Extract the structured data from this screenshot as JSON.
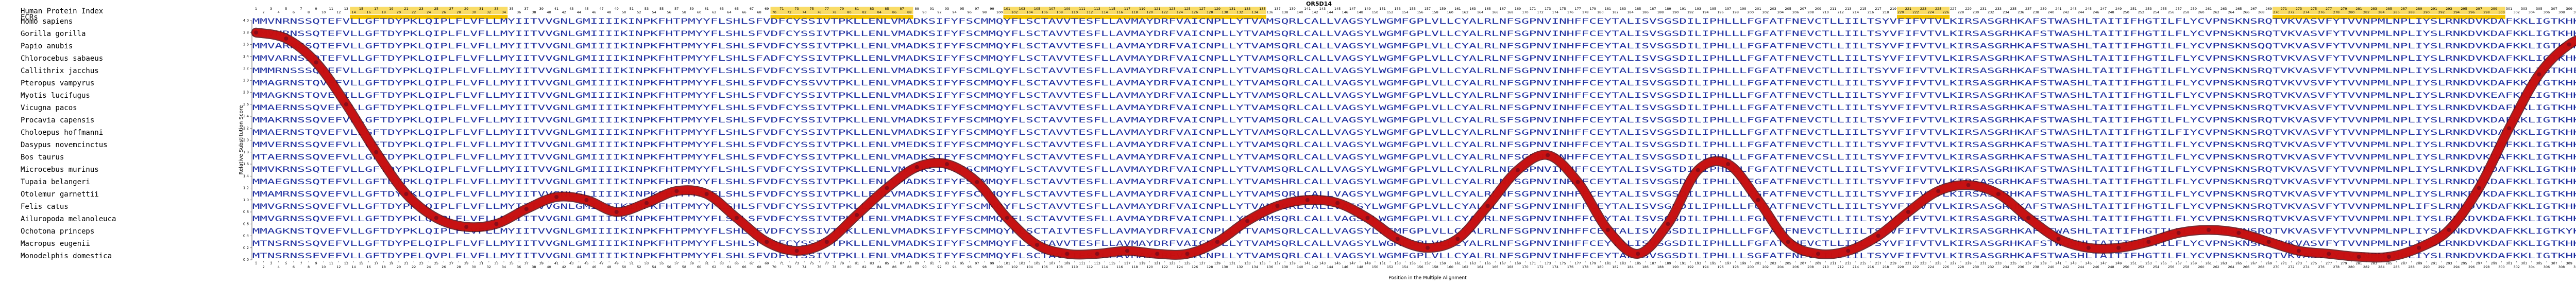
{
  "chart_data": {
    "type": "line",
    "title": "OR5D14",
    "index_label": "Human Protein Index",
    "ecr_label": "ECRs",
    "ylabel": "Relative Substitution Score",
    "xlabel": "Position in the Multiple Alignment",
    "xlim": [
      1,
      313
    ],
    "ylim": [
      0,
      4
    ],
    "yticks": [
      {
        "value": 0,
        "label": "0.0"
      },
      0.2,
      0.4,
      0.6,
      0.8,
      {
        "value": 1,
        "label": "1.0"
      },
      1.2,
      1.4,
      1.6,
      1.8,
      {
        "value": 2,
        "label": "2.0"
      },
      2.2,
      2.4,
      2.6,
      2.8,
      {
        "value": 3,
        "label": "3.0"
      },
      3.2,
      3.4,
      3.6,
      3.8,
      {
        "value": 4,
        "label": "4.0"
      }
    ],
    "xticks": [
      1,
      2,
      3,
      4,
      5,
      6,
      7,
      8,
      9,
      10,
      11,
      12,
      13,
      14,
      15,
      16,
      17,
      18,
      19,
      20,
      21,
      22,
      23,
      24,
      25,
      26,
      27,
      28,
      29,
      30,
      31,
      32,
      33,
      34,
      35,
      36,
      37,
      38,
      39,
      40,
      41,
      42,
      43,
      44,
      45,
      46,
      47,
      48,
      49,
      50,
      51,
      52,
      53,
      54,
      55,
      56,
      57,
      58,
      59,
      60,
      61,
      62,
      63,
      64,
      65,
      66,
      67,
      68,
      69,
      70,
      71,
      72,
      73,
      74,
      75,
      76,
      77,
      78,
      79,
      80,
      81,
      82,
      83,
      84,
      85,
      86,
      87,
      88,
      89,
      90,
      91,
      92,
      93,
      94,
      95,
      96,
      97,
      98,
      99,
      100,
      101,
      102,
      103,
      104,
      105,
      106,
      107,
      108,
      109,
      110,
      111,
      112,
      113,
      114,
      115,
      116,
      117,
      118,
      119,
      120,
      121,
      122,
      123,
      124,
      125,
      126,
      127,
      128,
      129,
      130,
      131,
      132,
      133,
      134,
      135,
      136,
      137,
      138,
      139,
      140,
      141,
      142,
      143,
      144,
      145,
      146,
      147,
      148,
      149,
      150,
      151,
      152,
      153,
      154,
      155,
      156,
      157,
      158,
      159,
      160,
      161,
      162,
      163,
      164,
      165,
      166,
      167,
      168,
      169,
      170,
      171,
      172,
      173,
      174,
      175,
      176,
      177,
      178,
      179,
      180,
      181,
      182,
      183,
      184,
      185,
      186,
      187,
      188,
      189,
      190,
      191,
      192,
      193,
      194,
      195,
      196,
      197,
      198,
      199,
      200,
      201,
      202,
      203,
      204,
      205,
      206,
      207,
      208,
      209,
      210,
      211,
      212,
      213,
      214,
      215,
      216,
      217,
      218,
      219,
      220,
      221,
      222,
      223,
      224,
      225,
      226,
      227,
      228,
      229,
      230,
      231,
      232,
      233,
      234,
      235,
      236,
      237,
      238,
      239,
      240,
      241,
      242,
      243,
      244,
      245,
      246,
      247,
      248,
      249,
      250,
      251,
      252,
      253,
      254,
      255,
      256,
      257,
      258,
      259,
      260,
      261,
      262,
      263,
      264,
      265,
      266,
      267,
      268,
      269,
      270,
      271,
      272,
      273,
      274,
      275,
      276,
      277,
      278,
      279,
      280,
      281,
      282,
      283,
      284,
      285,
      286,
      287,
      288,
      289,
      290,
      291,
      292,
      293,
      294,
      295,
      296,
      297,
      298,
      299,
      300,
      301,
      302,
      303,
      304,
      305,
      306,
      307,
      308,
      309,
      310,
      311,
      312,
      313
    ],
    "ecrs": [
      [
        14,
        34
      ],
      [
        70,
        88
      ],
      [
        101,
        135
      ],
      [
        220,
        226
      ],
      [
        270,
        300
      ]
    ],
    "ecr_color": "#f5c400",
    "sequences": [
      {
        "name": "Homo sapiens",
        "seq": "MMVNRNSSQTEFVLLGFTDYPKLQIPLFLVFLLMYIITVVGNLGMIIIIKINPKFHTPMYYFLSHLSFVDFCYSSIVTPKLLENLVMADKSIFYFSCMMQYFLSCTAVVTESFLLAVMAYDRFVAICNPLLYTVAMSQRLCALLVAGSYLWGMFGPLVLLCYALRLNFSGPNVINHFFCEYTALISVSGSDILIPHLLLFGFATFNEVCTLLIILTSYVFIFVTVLKIRSASGRHKAFSTWASHLTAITIFHGTILFLYCVPNSKNSRQTVKVASVFYTVVNPMLNPLIYSLRNKDVKDAFKKLIGTKHKLTC"
      },
      {
        "name": "Gorilla gorilla",
        "seq": "MMVNRNSSQTEFVLLGFTDYPKLQIPLFLVFLLMYIITVVGNLGMIIIIKINPKFHTPMYYFLSHLSFVDFCYSSIVTPKLLENLVMADKSIFYFSCMMQYFLSCTAVVTESFLLAVMAYDRFVAICNPLLYTVAMSQRLCALLVAGSYLWGMFGPLVLLCYALRLNFSGPNVINHFFCEYTALISVSGSDILIPHLLLFGFATFNEVCTLLIILTSYVFIFVTVLKIRSASGRHKAFSTWASHLTAITIFHGTILFLYCVPNSKNSRQTVKVASVFYTVVNPMLNPLIYSLRNKDVKDAFKKLIGTKHKLTC"
      },
      {
        "name": "Papio anubis",
        "seq": "MMVARNSSQTEFVLLGFTDYPKLQIPLFLVFLLMYIITVVGNLGMIIIIKINPKFHTPMYYFLSHLSFVDFCYSSIVTPKLLENLVMADKSIFYFSCMMQYFLSCTAVVTESFLLAVMAYDRFVAICNPLLYTVAMSQRLCALLVAGSYLWGMFGPLVLLCYALRLNFSGPNVINHFFCEYTALISVSGSDILIPHLLLFGFATFNEVCTLLIILTSYVFIFVTVLKIRSASGRHKAFSTWASHLTAITIFHGTILFLYCVPNSKNSQQTVKVASVFYTVVNPMLNPLIYSLRNKDVKDAFKKLIGTKHKLTC"
      },
      {
        "name": "Chlorocebus sabaeus",
        "seq": "MMVARNSSQTEFVLLGFTDYPKLQIPLFLVFLLMYIITVVGNLGMIIIIKINPKFHTPMYYFLSHLSFADFCYSSIVTPKLLENLVMADKSIFYFSCMMQYFLSCTAVVTESFLLAVMAYDRFVAICNPLLYTVAMSQRLCALLVAGSYLWGMFGPLVLLCYALRLNFSGPNVINHFFCEYTALISVSGSDILIPHLLLFGFATFNEVCTLLIILTSYVFIFVTVLKIRSASGRHKAFSTWASHLTAITIFHGTILFLYCVPNSKNSRQTVKVASVFYTVVNPMLNPLIYSLRNKDVKDAFKKLIGTKHKLTC"
      },
      {
        "name": "Callithrix jacchus",
        "seq": "MMMRNSSSQTEFVLLGFTDYPKLQIPLFLVFLLMYIITVVGNLGMIIIIKINPKFHTPMYYFLSHLSFVDFCYSSIVTPKLLENLVMADKSIFYFSCMLQYFLSCTAVVTESFLLAVMAYDRFVAICNPLLYTVAMSQRLCALLVAGSYLWGMFGPLVLLCYALRLNFSGPNVINHFFCEYTALISVSGSDILIPHLLLFGFATFNEVCTLLIILTSYVFIFVTVLKIRSASGRHKAFSTWASHLTAITIFHGTILFLYCVPNSKNSRQTVKVASVFYTVVNPMLNPLIYSLRNKDVKDAFKKLIGTKHELTC"
      },
      {
        "name": "Pteropus vampyrus",
        "seq": "MMAGRNSTQVEFVLLGFTDYPKLQIPLFLVFLLMYIITVVGNLGMIIIIKINPKFHTPMYYFLSHLSFVDFCYSSVVTPKLLENLVMADKSIFYFSCMMQYFLSCTAVVTESFLLAVMAYDRFVAICNPLLYTVAMSQRLCALLVAGSYLWGMFGPLVLLCYALRLNFSGPNVINHFFCEYTALISVSGSDILIPHLLLFGFATFNEVCTLLIILTSYVFIFVTVLKIRSASGRHKAFSTWASHLTAITIFHGTILFLYCVPNSKNSRQTVKVVSVFYTVVNPMLNPLIYSLRNKDVKDAFKKLIGTKHKLTC"
      },
      {
        "name": "Myotis lucifugus",
        "seq": "MMAGKNSTQVEFILLGFTDYPKLQIPLFLVFLLMYIITVVGNLGMIIIIKINPKFHTPMYYFLSHLSFVDFCYSSIVTPKLLENLVMADKSIFYFSCMMQYFLSCTAVVTESFLLAVMAYDRFVAICNPLLYTVAMSQRLCALLVAGSYLWGMFGPLVLLCYALRLNFSGPNVINHFFCEYTALISVSGSDILIPHLLLFGFATFNEVCTLLIILTSYVFIFVTVLKIRSASGRHKAFSTWASHLTAITIFHGTILFLYCVPNSKNSRQTVKVASVFYTVVNPMLNPLIYSLRNKDVKEAFKKLIGTKHKLTC"
      },
      {
        "name": "Vicugna pacos",
        "seq": "MMAERNSSQVEFVLLGFTDYPKLQIPLFLVFLLMYIITVVGNLGMIIIIKINPKFHTPMYYFLSHLSFVDFCYSSIVTPKLLENLVMADKSIFYFSCMMQYFLSCTAVVTESFLLAVMAYDRFVAICNPLLYTVAMSQRLCALLVAGSYLWGMFGPLVLLCYALRLNFSGPNVINHFFCEYTALISVSGSDILIPHLLLFGFATFNEVCTLLIILTSYVFIFVTVLRIRSASGRHKAFSTWASHLTAITIFHGTILFLYCVPNSKNSRQTVKVASVFYTVVNPMLNPLIYSLRNKDVKDAFKKLIGTKHKLTC"
      },
      {
        "name": "Procavia capensis",
        "seq": "MMAKRNSSQVEFVLLGFTDYPKLQIPLFLVFLLMYIITVVGNLGMIIIIKINPKFHTPMYYFLSHLSFVDFCYSSIVTPKLLENLVMADKSIFYFSCMMQYFLSCTAVVTESFLLAVMAYDRFVAICNPLLYTVAMSQRLCALLVAGSYLWGMFGPLVLLCYALRLSFSGPNVINHFFCEYTALISVSGSDILIPHLLLFGFATFNEVCTLLIILTSYVFIFVTVLKIRSASGRHKAFSTWASHLTAITIFHGTILFLYCVPNSKNSRQTVKVASVFYTVVNPMLNPLIYSLRNKDVKDAFKKLIGTKHKLTC"
      },
      {
        "name": "Choloepus hoffmanni",
        "seq": "MMAERNSTQVEFVLLGFTDYPKLQIPLFLVFLLMYIITVVGNLGMIIIIKINPKFHTPMYYFLSHLSFVDFCYSSIVTPKLLENLVMADKSIFYFSCMMQYFLSCTAVVTESFLLAVMAYDRFVAICNPLLYTVAMSQRLCALLVAGSYLWGMFGPLVLLCYALRLNFSGPNVINHFFCEYTALISVSGSDILIPHLLLFGFATFNEVCTLLIILTSYVFIFVTVLKIRSASGRHKAFSTWASHLTAITIFHGTILFIYCVPNSKNSRQTVKVASVFYTVVNPMLNPLIYSLRNKDVKDAFKKLIGTKHKLTC"
      },
      {
        "name": "Dasypus novemcinctus",
        "seq": "MMVERNSSQVEFVLLGFTDYPKLQIPLFLVFLLMYIITVVGNLGMIIIIKINPKFHTPMYYFLSHLSFVDFCYSSIVTPKLLENLVMEDKSIFYFSCMMQYFLSCTAVVTESFLLAVMAYDRFVAICNPLLYTVAMSQRLCALLVAGSYLWGMFGPLVLLCYALRLNFSGPNVINHFFCEYTALISVSGSDILIPHLLLFGFATFNEVCTLLIILTSYVFIFVTVLKIRSASGRHKAFSTWASHLTAITIFHGTILFLYCVPNSKNSRQTVKVASVFYTVVNPMLNPLIYSLRNKDVKDAFKKLIGTKHKLTC"
      },
      {
        "name": "Bos taurus",
        "seq": "MTAERNSSQVEFVLLGFTDYPKLQIPLFLVFLLMYIITVVGNLGMIIIIKINPKFHTPMYYFLSHLSFVDFCYSSIVTPKLLENLVMADKSIFYFSCMMQYFLSCTAVVTESFLLAVMAYDRFVAICNPLLYTVAMSQRLCALLVAGSYLWGMFGPLVLLCYALRLNFSGPNVINHFFCEYTALISVSGSDILIPHLLLFGFATFNEVCSLLIILTSYVFIFVTVLKIRSASGRHKAFSTWASHLTAITIFHGTILFLYCVPNSKNSRQTVKVASVFYTVVNPMLNPLIYSLRNKDVKDAFKKLIGTKHKLTC"
      },
      {
        "name": "Microcebus murinus",
        "seq": "MMVKRNSSQTEFVLLGFTDYPKLQIPLFLVFLLMYIITVVGNLGMIIIIKINPKFHTPMYYFLSHLSFVDFCYSSIVTPKLLENLVMADKSIFYFSCMMQYFLSCTAVVTESFLLAVMAYDRFVAICNPLLYTVAMSQRLCALLVAGSYLWGMFGPLVLLCYALRLNFSGPNVINHFFCEYTALISVSGTDILIPHLLLFGFATFNEVCTLLIILTSYVFIFVTVLKIRSASGRHKAFSTWASHLTAITIFHGTILFLYCVPNSKNSRQTVKVASVFYTVVNPMLNPLIYSLRNKDVKDAFKKLIGTKHKLTC"
      },
      {
        "name": "Tupaia belangeri",
        "seq": "MMAEGNSSQTEFVLLGFTDYPKLQIPLFLVFLLMYIITVVGNLGMIIIIKINPKFHTPMYYFLSHLSFVDFCYSSIVTPKLLENLVMADKSIFYFSCMMQYFLSCTAVVTESFLLAVMAYDRFVAICNPLLYTVAMSHRLCALLVAGSYLWGMFGPLVLLCYALRLNFSGPNVINHFFCEYTALISVSGSDILIPHLLLFGFATFNEVCTLLIILTSYVFIFVTVLKIRSASGRHKAFSTWASHLTAITIFHGTILFLYCVPNSKNSRQTVKVASVFYTVVNPMLNPLIYSLRNKDVKDAFKKLIGTKHKLTC"
      },
      {
        "name": "Otolemur garnettii",
        "seq": "MMAMRNSSQVEFVLLGFTDYPKLQIPLFLVFLLMYIITVVGNLGLIIIIKINPKFHTPMYYFLSHLSFVDFCYSSIVTPKLLENLVMADKSIFYFSCMMQYFLSCTAVVTESFLLAVMAYDRFVAICNPLLYTVAMSQRLCALLVAGSYLWGMFGPLVLLCYALRLNFSGPNVINHFFCEYTALISVSGSDILIPHLLLFGFATFNEVCTLLIILTSYVFIFVTVLKIRSASGRHKAFSTWASHLTAITIFHGTILFLYCVPNSKNSRQTVKVASVFYTVVNPMLNPLIYSLRNKDVKDAFKKLIGTKHKLTC"
      },
      {
        "name": "Felis catus",
        "seq": "MMVGRNSSQVEFVLLGFTDYPKLQIPLFLVFLLMYIITVVGNLGMIIIIKINPKFHTPMYYFLSHLSFVDFCYSSIVTPKLLENLVMADKSIFYFSCMMQYFLSCTAVVTESFLLAVMAYDRFVAICNPLLYTVAMSQRLCALLVAGSYLWGMFGPLVLLCYALRLNFSGPNVINHFFCEYTALISVSGSDILIPHLLLFGFATFNEVCTLLIILTSYVFIFVTVLKIRSASGRHKAFSTWASHLTAITIFHGTILFLYCVPNSKNSRQTVKVASVFYTVVNPMLNPLIFSLRNKDVKDAFKKLIGTKHKLTC"
      },
      {
        "name": "Ailuropoda melanoleuca",
        "seq": "MMVGRNSSQVEFVLLGFTDYPKLQIPLFLVFLLMYIITVVGNLGMIIIIKINPKFHTPMYYFLSHLSFVDFCYSSIVTPKLLENLVMADKSIFYFSCMMQYFLSCTAVVTESFLLAVMAYDRFVAICNPLLYTVAMSQRLCALLVAGSYLWGMFGPLVLLCYALRLNFSGPNVINHFFCEYTALISVSGSDILIPHLLLFGFATFNEVCTLLIILTSYVFIFVTVLKIRSASGRRKAFSTWASHLTAITIFHGTILFLYCVPNSKNSRQTVKVASVFYTVVNPMLNPLIYSLRNKDVKDAFKKLIGTKHKLTC"
      },
      {
        "name": "Ochotona princeps",
        "seq": "MMAGKNSTQVEFVLLGFTDYPKLQIPLFLVFLLMYIITVVGNLGMIIIIKINPKFHTPMYYFLSHLSFVDFCYSSIVTPKLLENLVMADKSIFYFSCMMQYFLSCTAIVTESFLLAVMAYDRFVAICNPLLYTVAMSQRLCALLVAGSYLWGMFGPLVLLCYALRLNFSGPNVINHFFCEYTALISVSGSDILIPHLLLFGFATFNEVCTLLIILTSYVFIFVTVLKIRSASGRHKAFSTWASHLTAITIFHGTILFLYCVPNSKNSRQTVKVASVFYTVVNPMLNPLIYSLRNKDVKDAFKKLIGTKYKLTC"
      },
      {
        "name": "Macropus eugenii",
        "seq": "MTNSRNSSQVEFVLLGFTDYPELQIPLFLVFLLMYIITVVGNLGMIIIIKINPKFHTPMYYFLSHLSFVDFCYSSIVTPKLLENLVMADKSIFYFSCMMQYFLSCTAVVTESFLLAVMAYDRFVAICNPLLYTVAMSQRLCALLVAGSYLWGMFGPLVLLCYALRLNFSGPNVINHFFCEYTALISVSGSDILIPHLLLFGFATFNEVCTLLIILTSYVFIFVTVLKIRSASGRHKAFSTWGSHLTAITIFHGTILFLYCVPNSKNSRQTVKVASVFYTVVNPMLNPLIYSLRNKDVKDAFKKLIGTKHKLTS"
      },
      {
        "name": "Monodelphis domestica",
        "seq": "MTNSRNSSEVEFVLLGFTDYPELQVPLFLVFLLMYIITVVGNLGMIIIIKINPKFHTPMYYFLSHLSFVDFCYSSIVTPKLLENLVMADKSIFYFSCMMQYFLSCTAVVTESFLLAVMAYDRFVAICNPLLYTVAMSQRLCALLVAGSYLWGMFGPLVLLCYALRLNFSGPNVINHFFCEYTALISVSGSDILIPHLLLSGFATFNEVCTLLIILTSYVFIFVTVLKIRSASGRHKAFSTWASHLTAITIFHGTILFLYCVPNSKNSRQTVKVASVFYTVVNPMLNPLIYSLRNKDVKDAFKKLIGTKHKLTS"
      }
    ],
    "seq_color": "#1f2fa0",
    "series": [
      {
        "name": "Relative Substitution Score",
        "color": "#d01010",
        "x": [
          1,
          5,
          9,
          13,
          17,
          21,
          25,
          29,
          33,
          37,
          41,
          45,
          49,
          53,
          57,
          61,
          65,
          69,
          73,
          77,
          81,
          85,
          89,
          93,
          97,
          101,
          105,
          109,
          113,
          117,
          121,
          125,
          129,
          133,
          137,
          141,
          145,
          149,
          153,
          157,
          161,
          165,
          169,
          173,
          177,
          181,
          185,
          189,
          193,
          197,
          201,
          205,
          209,
          213,
          217,
          221,
          225,
          229,
          233,
          237,
          241,
          245,
          249,
          253,
          257,
          261,
          265,
          269,
          273,
          277,
          281,
          285,
          289,
          293,
          297,
          301,
          305,
          309,
          313
        ],
        "values": [
          3.8,
          3.7,
          3.3,
          2.6,
          1.8,
          1.1,
          0.7,
          0.55,
          0.6,
          0.85,
          1.05,
          1.0,
          0.8,
          0.95,
          1.15,
          1.1,
          0.7,
          0.3,
          0.15,
          0.3,
          0.75,
          1.2,
          1.55,
          1.6,
          1.3,
          0.7,
          0.25,
          0.1,
          0.1,
          0.15,
          0.1,
          0.1,
          0.3,
          0.65,
          0.9,
          1.0,
          0.95,
          0.7,
          0.35,
          0.2,
          0.35,
          0.9,
          1.5,
          1.75,
          1.3,
          0.5,
          0.1,
          0.6,
          1.5,
          1.6,
          1.0,
          0.3,
          0.1,
          0.15,
          0.4,
          0.8,
          1.15,
          1.25,
          1.1,
          0.7,
          0.35,
          0.2,
          0.2,
          0.3,
          0.45,
          0.5,
          0.45,
          0.3,
          0.15,
          0.1,
          0.05,
          0.05,
          0.2,
          0.5,
          1.2,
          2.2,
          3.1,
          3.6,
          3.8
        ]
      }
    ]
  }
}
